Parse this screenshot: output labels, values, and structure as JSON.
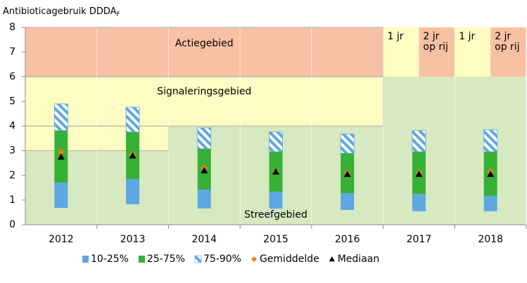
{
  "chart_data": {
    "type": "range_bar",
    "y_label": "Antibioticagebruik DDDA",
    "y_label_sub": "F",
    "categories": [
      "2012",
      "2013",
      "2014",
      "2015",
      "2016",
      "2017",
      "2018"
    ],
    "ylim": [
      0,
      8
    ],
    "yticks": [
      0,
      1,
      2,
      3,
      4,
      5,
      6,
      7,
      8
    ],
    "zones": [
      {
        "name": "Streefgebied",
        "color": "#d7e9c0",
        "y": [
          0,
          8
        ],
        "from": "2012",
        "to": "2018"
      },
      {
        "name": "Actiegebied",
        "color": "#f9c1a3",
        "y": [
          6,
          8
        ],
        "from": "2012",
        "to": "2016"
      },
      {
        "name": "Signaleringsgebied",
        "color": "#fefcc3",
        "y": [
          4,
          6
        ],
        "from": "2012",
        "to": "2016"
      },
      {
        "color": "#fefcc3",
        "y": [
          3,
          4
        ],
        "from": "2012",
        "to": "2013"
      },
      {
        "y": [
          6,
          8
        ],
        "from": "2017",
        "to": "2018",
        "parts": [
          {
            "name": "1 jr",
            "color": "#fefcc3"
          },
          {
            "name": "2 jr op rij",
            "color": "#f9c1a3"
          }
        ]
      }
    ],
    "series": [
      {
        "name": "10-25%",
        "color": "#5ea7e1",
        "values": [
          [
            0.68,
            1.71
          ],
          [
            0.83,
            1.85
          ],
          [
            0.66,
            1.42
          ],
          [
            0.65,
            1.34
          ],
          [
            0.6,
            1.28
          ],
          [
            0.55,
            1.25
          ],
          [
            0.55,
            1.17
          ]
        ]
      },
      {
        "name": "25-75%",
        "color": "#35b135",
        "values": [
          [
            1.71,
            3.82
          ],
          [
            1.85,
            3.76
          ],
          [
            1.42,
            3.08
          ],
          [
            1.34,
            2.96
          ],
          [
            1.28,
            2.9
          ],
          [
            1.25,
            2.96
          ],
          [
            1.17,
            2.96
          ]
        ]
      },
      {
        "name": "75-90%",
        "color": "#5ea7e1",
        "pattern": "hatch",
        "values": [
          [
            3.82,
            4.9
          ],
          [
            3.76,
            4.76
          ],
          [
            3.08,
            3.93
          ],
          [
            2.96,
            3.76
          ],
          [
            2.9,
            3.68
          ],
          [
            2.96,
            3.82
          ],
          [
            2.96,
            3.85
          ]
        ]
      }
    ],
    "markers": [
      {
        "name": "Gemiddelde",
        "color": "#f07d1c",
        "shape": "diamond",
        "values": [
          2.95,
          2.85,
          2.3,
          2.15,
          2.1,
          2.1,
          2.15
        ]
      },
      {
        "name": "Mediaan",
        "color": "#000000",
        "shape": "triangle",
        "values": [
          2.75,
          2.8,
          2.2,
          2.15,
          2.05,
          2.05,
          2.05
        ]
      }
    ],
    "grid": true
  }
}
